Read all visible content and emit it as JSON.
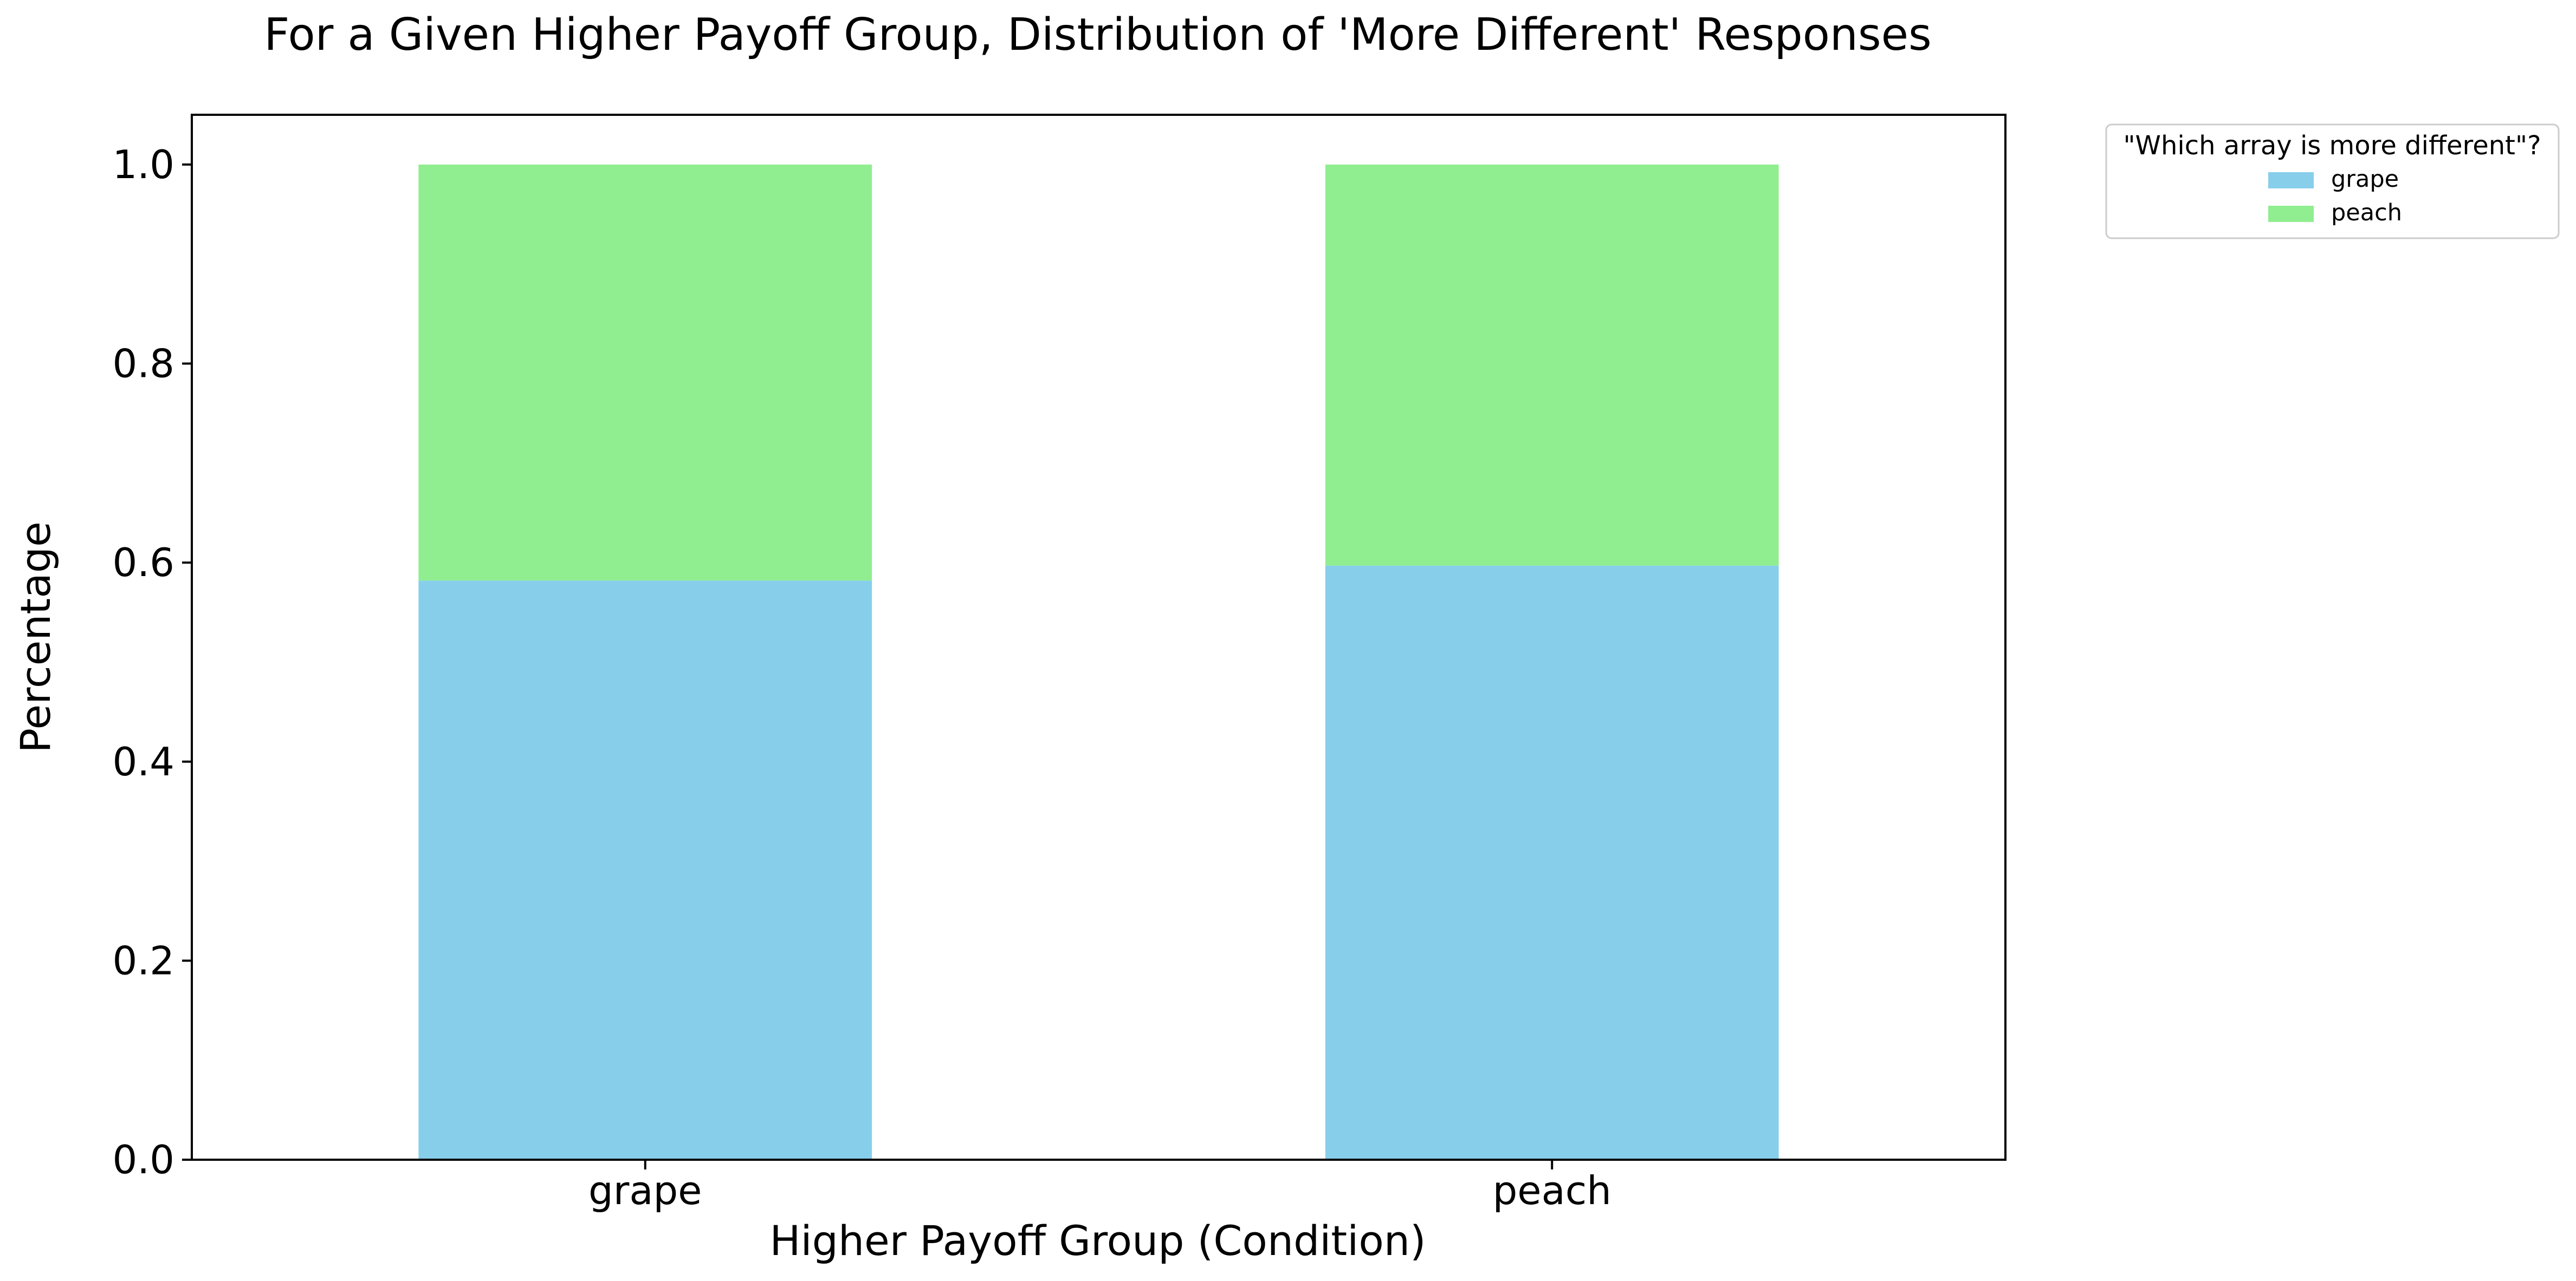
{
  "chart_data": {
    "type": "bar",
    "stacked": true,
    "title": "For a Given Higher Payoff Group, Distribution of 'More Different' Responses",
    "xlabel": "Higher Payoff Group (Condition)",
    "ylabel": "Percentage",
    "categories": [
      "grape",
      "peach"
    ],
    "series": [
      {
        "name": "grape",
        "color": "#87CEEB",
        "values": [
          0.582,
          0.597
        ]
      },
      {
        "name": "peach",
        "color": "#90EE90",
        "values": [
          0.418,
          0.403
        ]
      }
    ],
    "ylim": [
      0,
      1.05
    ],
    "yticks": [
      "0.0",
      "0.2",
      "0.4",
      "0.6",
      "0.8",
      "1.0"
    ],
    "grid": false,
    "legend": {
      "title": "\"Which array is more different\"?",
      "placement": "outside-top-right"
    }
  }
}
